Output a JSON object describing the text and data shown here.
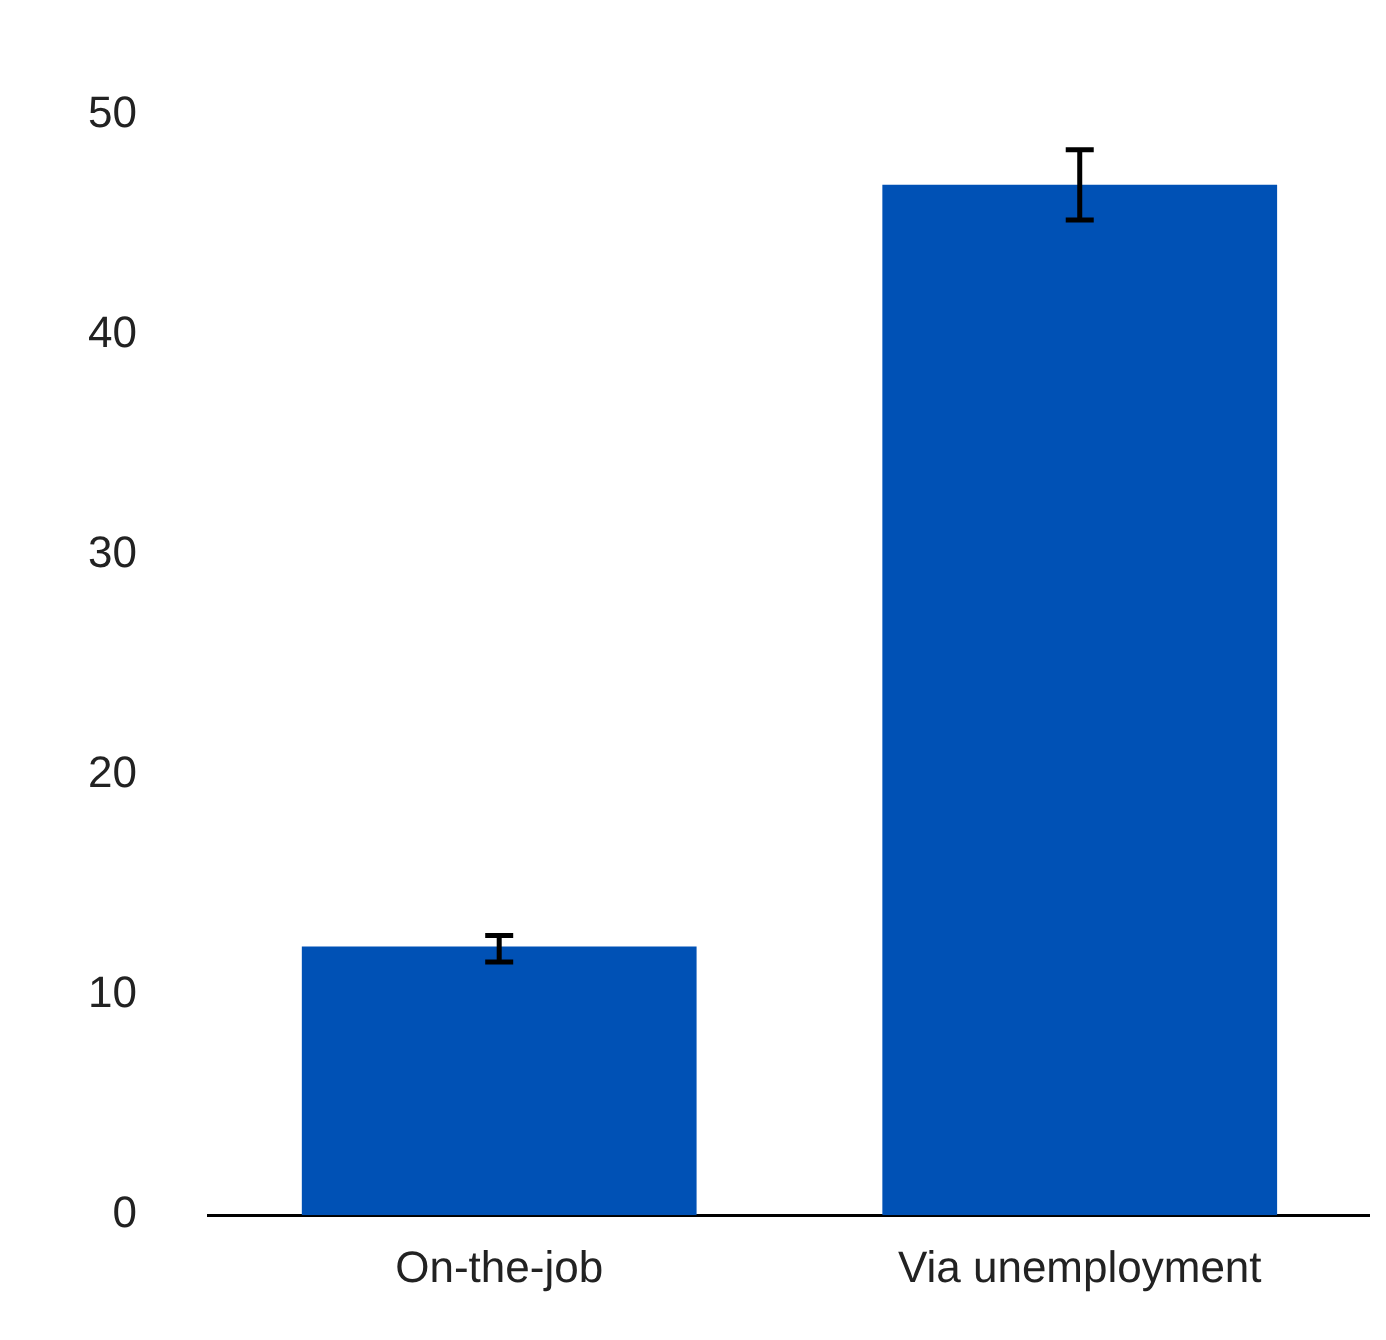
{
  "chart_data": {
    "type": "bar",
    "categories": [
      "On-the-job",
      "Via unemployment"
    ],
    "values": [
      12.2,
      46.8
    ],
    "errors": [
      [
        11.5,
        12.7
      ],
      [
        45.2,
        48.4
      ]
    ],
    "color": "#0051b5",
    "ylim": [
      0,
      50
    ],
    "yticks": [
      0,
      10,
      20,
      30,
      40,
      50
    ],
    "grid": false,
    "legend": false
  }
}
